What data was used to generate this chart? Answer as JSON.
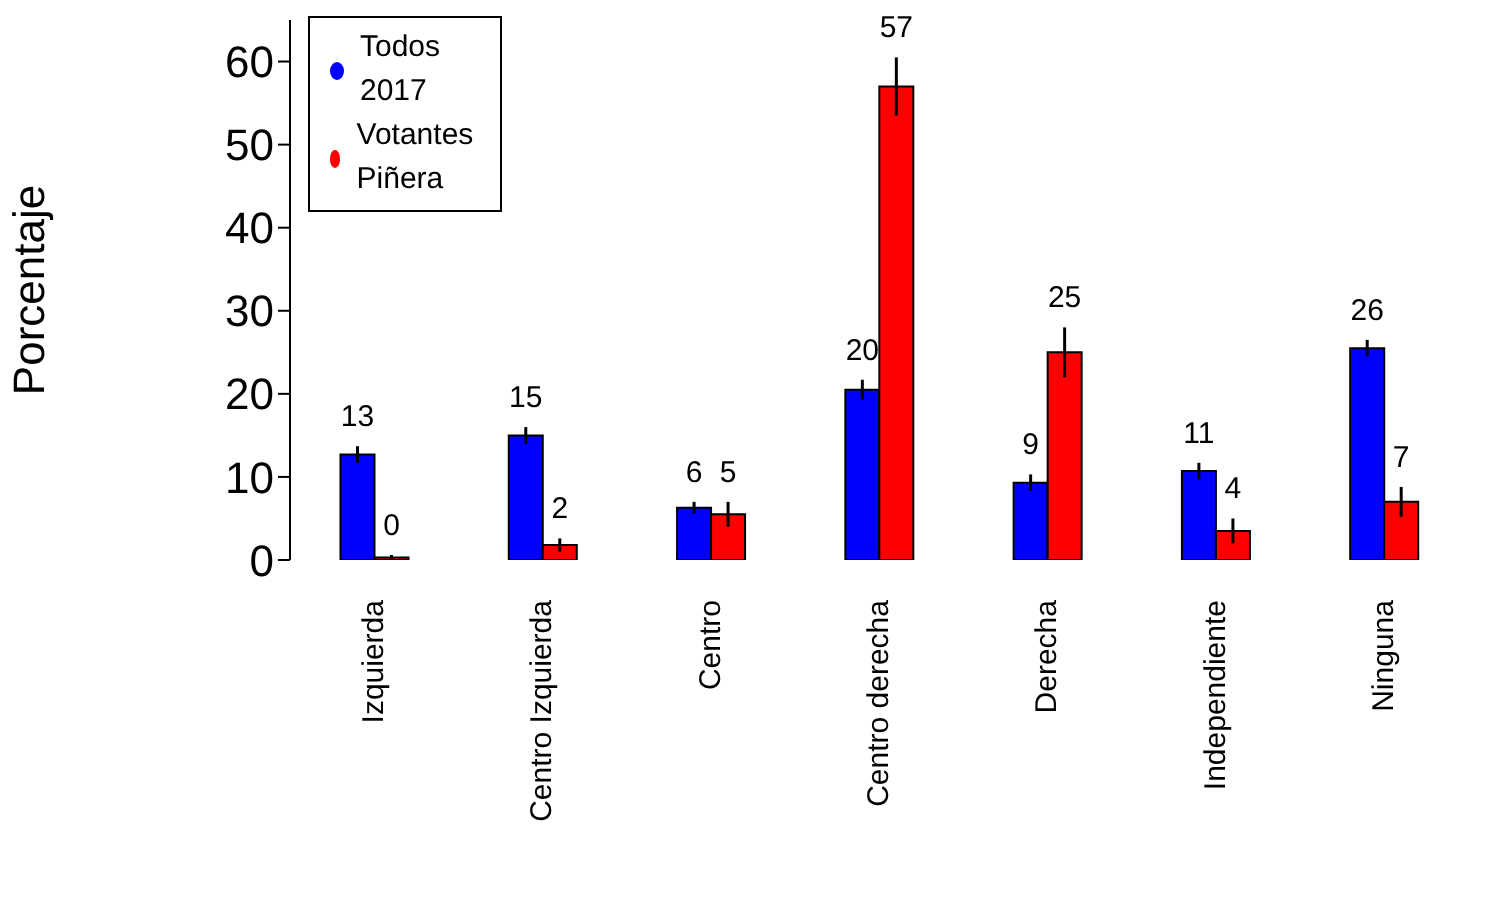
{
  "chart_data": {
    "type": "bar",
    "ylabel": "Porcentaje",
    "categories": [
      "Izquierda",
      "Centro Izquierda",
      "Centro",
      "Centro derecha",
      "Derecha",
      "Independiente",
      "Ninguna"
    ],
    "series": [
      {
        "name": "Todos 2017",
        "color": "#0000ff",
        "values": [
          12.7,
          15,
          6.3,
          20.5,
          9.3,
          10.7,
          25.5
        ],
        "errors": [
          1,
          1,
          0.7,
          1.2,
          1,
          1,
          1
        ],
        "value_labels": [
          "13",
          "15",
          "6",
          "20",
          "9",
          "11",
          "26"
        ]
      },
      {
        "name": "Votantes Piñera",
        "color": "#ff0000",
        "values": [
          0.3,
          1.8,
          5.5,
          57,
          25,
          3.5,
          7
        ],
        "errors": [
          0.3,
          0.8,
          1.5,
          3.5,
          3,
          1.5,
          1.8
        ],
        "value_labels": [
          "0",
          "2",
          "5",
          "57",
          "25",
          "4",
          "7"
        ]
      }
    ],
    "ylim": [
      0,
      65
    ],
    "yticks": [
      0,
      10,
      20,
      30,
      40,
      50,
      60
    ],
    "grid": false,
    "legend": "top left"
  }
}
